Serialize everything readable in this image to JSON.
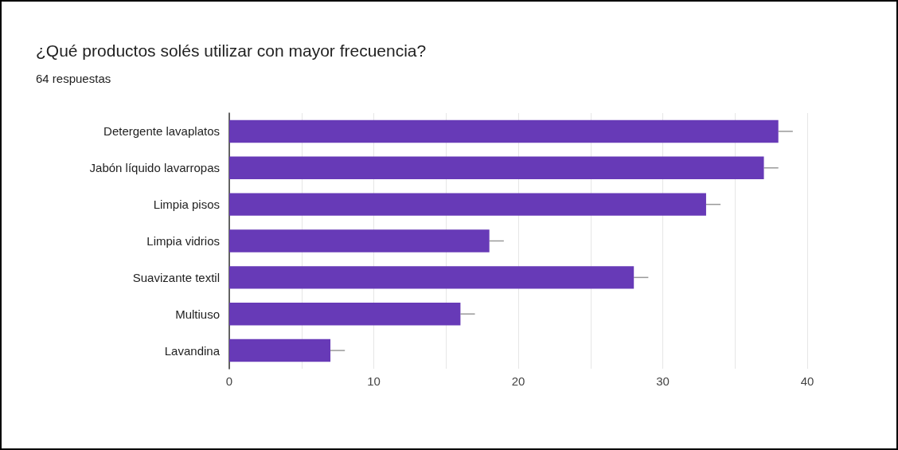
{
  "chart_data": {
    "type": "bar",
    "orientation": "horizontal",
    "title": "¿Qué productos solés utilizar con mayor frecuencia?",
    "subtitle": "64 respuestas",
    "categories": [
      "Detergente lavaplatos",
      "Jabón líquido lavarropas",
      "Limpia pisos",
      "Limpia vidrios",
      "Suavizante textil",
      "Multiuso",
      "Lavandina"
    ],
    "values": [
      38,
      37,
      33,
      18,
      28,
      16,
      7
    ],
    "errors": [
      [
        38,
        39
      ],
      [
        37,
        38
      ],
      [
        33,
        34
      ],
      [
        18,
        19
      ],
      [
        28,
        29
      ],
      [
        16,
        17
      ],
      [
        7,
        8
      ]
    ],
    "color": "#673ab7",
    "xlim": [
      0,
      40
    ],
    "xticks": [
      0,
      {
        "value": 5,
        "label": null
      },
      10,
      {
        "value": 15,
        "label": null
      },
      20,
      {
        "value": 25,
        "label": null
      },
      30,
      {
        "value": 35,
        "label": null
      },
      40
    ],
    "grid": "x"
  }
}
